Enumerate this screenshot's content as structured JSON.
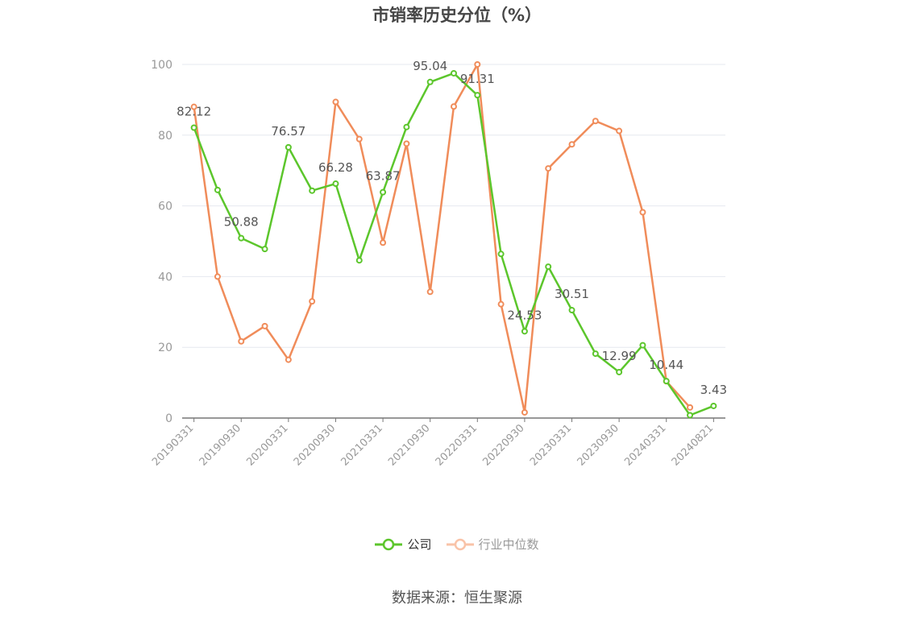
{
  "chart_data": {
    "type": "line",
    "title": "市销率历史分位（%）",
    "categories": [
      "20190331",
      "20190630",
      "20190930",
      "20191231",
      "20200331",
      "20200630",
      "20200930",
      "20201231",
      "20210331",
      "20210630",
      "20210930",
      "20211231",
      "20220331",
      "20220630",
      "20220930",
      "20221231",
      "20230331",
      "20230630",
      "20230930",
      "20231231",
      "20240331",
      "20240630",
      "20240821"
    ],
    "x_tick_labels": [
      "20190331",
      "20190930",
      "20200331",
      "20200930",
      "20210331",
      "20210930",
      "20220331",
      "20220930",
      "20230331",
      "20230930",
      "20240331",
      "20240821"
    ],
    "ylim": [
      0,
      100
    ],
    "y_ticks": [
      0,
      20,
      40,
      60,
      80,
      100
    ],
    "grid": true,
    "legend_position": "bottom",
    "series": [
      {
        "name": "公司",
        "color": "#5cc62c",
        "values": [
          82.12,
          64.5,
          50.88,
          47.8,
          76.57,
          64.3,
          66.28,
          44.6,
          63.87,
          82.3,
          95.04,
          97.5,
          91.31,
          46.4,
          24.53,
          42.8,
          30.51,
          18.2,
          12.99,
          20.6,
          10.44,
          0.8,
          3.43
        ],
        "labels": {
          "0": "82.12",
          "2": "50.88",
          "4": "76.57",
          "6": "66.28",
          "8": "63.87",
          "10": "95.04",
          "12": "91.31",
          "14": "24.53",
          "16": "30.51",
          "18": "12.99",
          "20": "10.44",
          "22": "3.43"
        }
      },
      {
        "name": "行业中位数",
        "color": "#f08c5a",
        "values": [
          88.0,
          40.0,
          21.7,
          26.0,
          16.5,
          33.0,
          89.4,
          78.9,
          49.6,
          77.6,
          35.7,
          88.1,
          100.0,
          32.2,
          1.6,
          70.6,
          77.4,
          84.0,
          81.2,
          58.2,
          10.4,
          3.0,
          null
        ]
      }
    ]
  },
  "source": "数据来源：恒生聚源"
}
